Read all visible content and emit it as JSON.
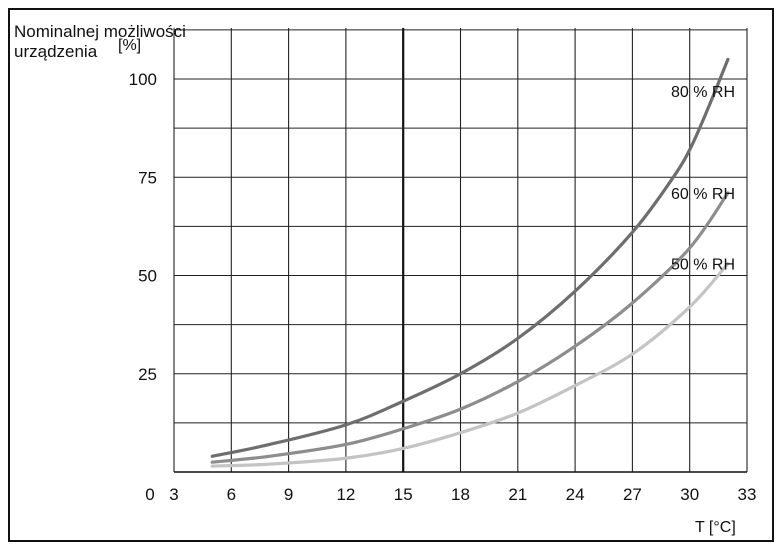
{
  "chart_data": {
    "type": "line",
    "title": "",
    "ylabel_line1": "Nominalnej możliwości",
    "ylabel_line2": "urządzenia",
    "yunit": "[%]",
    "xlabel": "T [°C]",
    "xlim": [
      0,
      33
    ],
    "ylim": [
      0,
      100
    ],
    "x_ticks": [
      0,
      3,
      6,
      9,
      12,
      15,
      18,
      21,
      24,
      27,
      30,
      33
    ],
    "x_tick_labels": [
      "0",
      "3",
      "6",
      "9",
      "12",
      "15",
      "18",
      "21",
      "24",
      "27",
      "30",
      "33"
    ],
    "y_ticks": [
      25,
      50,
      75,
      100
    ],
    "y_tick_labels": [
      "25",
      "50",
      "75",
      "100"
    ],
    "grid": true,
    "highlight_x": 15,
    "series": [
      {
        "name": "80 % RH",
        "color": "#6e6e6e",
        "x": [
          5,
          8,
          12,
          15,
          18,
          21,
          24,
          27,
          29,
          30,
          31,
          32
        ],
        "y": [
          4,
          7,
          12,
          18,
          25,
          34,
          46,
          61,
          74,
          82,
          93,
          105
        ]
      },
      {
        "name": "60 % RH",
        "color": "#8d8d8d",
        "x": [
          5,
          8,
          12,
          15,
          18,
          21,
          24,
          27,
          30,
          32
        ],
        "y": [
          2.5,
          4,
          7,
          11,
          16,
          23,
          32,
          43,
          57,
          71
        ]
      },
      {
        "name": "50 % RH",
        "color": "#c4c4c4",
        "x": [
          5,
          8,
          12,
          15,
          18,
          21,
          24,
          27,
          30,
          32
        ],
        "y": [
          1.5,
          2,
          3.5,
          6,
          10,
          15,
          22,
          30,
          42,
          53
        ]
      }
    ]
  }
}
